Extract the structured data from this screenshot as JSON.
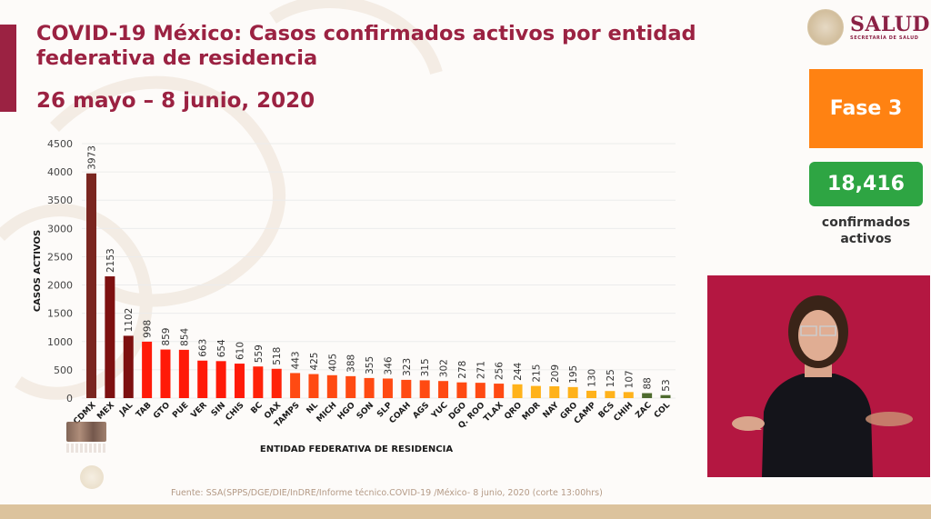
{
  "header": {
    "title": "COVID-19 México: Casos confirmados activos por entidad federativa de residencia",
    "date_range": "26 mayo – 8 junio, 2020"
  },
  "logo": {
    "name": "SALUD",
    "subtitle": "SECRETARÍA DE SALUD"
  },
  "sidebar": {
    "phase_label": "Fase 3",
    "total_count": "18,416",
    "count_caption_line1": "confirmados",
    "count_caption_line2": "activos"
  },
  "colors": {
    "brand": "#9b2242",
    "phase_orange": "#ff8212",
    "count_green": "#2ea543"
  },
  "footer": {
    "source": "Fuente: SSA(SPPS/DGE/DIE/InDRE/Informe técnico.COVID-19 /México- 8 junio, 2020 (corte 13:00hrs)"
  },
  "video": {
    "description": "sign-language-interpreter"
  },
  "chart_data": {
    "type": "bar",
    "title": "COVID-19 México: Casos confirmados activos por entidad federativa de residencia",
    "xlabel": "ENTIDAD FEDERATIVA DE  RESIDENCIA",
    "ylabel": "CASOS ACTIVOS",
    "ylim": [
      0,
      4500
    ],
    "yticks": [
      0,
      500,
      1000,
      1500,
      2000,
      2500,
      3000,
      3500,
      4000,
      4500
    ],
    "grid": true,
    "legend": "none",
    "categories": [
      "CDMX",
      "MEX",
      "JAL",
      "TAB",
      "GTO",
      "PUE",
      "VER",
      "SIN",
      "CHIS",
      "BC",
      "OAX",
      "TAMPS",
      "NL",
      "MICH",
      "HGO",
      "SON",
      "SLP",
      "COAH",
      "AGS",
      "YUC",
      "DGO",
      "Q. ROO",
      "TLAX",
      "QRO",
      "MOR",
      "NAY",
      "GRO",
      "CAMP",
      "BCS",
      "CHIH",
      "ZAC",
      "COL"
    ],
    "values": [
      3973,
      2153,
      1102,
      998,
      859,
      854,
      663,
      654,
      610,
      559,
      518,
      443,
      425,
      405,
      388,
      355,
      346,
      323,
      315,
      302,
      278,
      271,
      256,
      244,
      215,
      209,
      195,
      130,
      125,
      107,
      88,
      53
    ],
    "bar_colors": [
      "#7a2620",
      "#7d1010",
      "#7d1010",
      "#ff1a08",
      "#ff1a08",
      "#ff1a08",
      "#ff1a08",
      "#ff1a08",
      "#ff1a08",
      "#ff2208",
      "#ff2208",
      "#ff4a12",
      "#ff4a12",
      "#ff4a12",
      "#ff4a12",
      "#ff4a12",
      "#ff4a12",
      "#ff4a12",
      "#ff4a12",
      "#ff4a12",
      "#ff4a12",
      "#ff4a12",
      "#ff4a12",
      "#ffb21a",
      "#ffb21a",
      "#ffb21a",
      "#ffb21a",
      "#ffb21a",
      "#ffb21a",
      "#ffb21a",
      "#4e6b2e",
      "#4e6b2e"
    ]
  }
}
